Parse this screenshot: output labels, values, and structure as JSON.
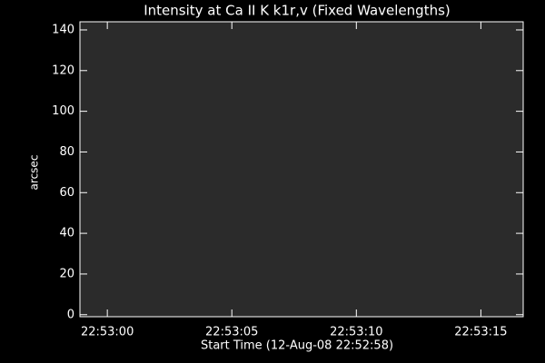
{
  "chart_data": {
    "type": "image",
    "title": "Intensity at Ca II K k1r,v (Fixed Wavelengths)",
    "xlabel": "Start Time (12-Aug-08 22:52:58)",
    "ylabel": "arcsec",
    "color": "#2b2b2b",
    "xlim": [
      0.9,
      18.7
    ],
    "xticks": [
      {
        "value": 2,
        "label": "22:53:00"
      },
      {
        "value": 7,
        "label": "22:53:05"
      },
      {
        "value": 12,
        "label": "22:53:10"
      },
      {
        "value": 17,
        "label": "22:53:15"
      }
    ],
    "ylim": [
      -1,
      144
    ],
    "yticks": [
      0,
      20,
      40,
      60,
      80,
      100,
      120,
      140
    ]
  }
}
